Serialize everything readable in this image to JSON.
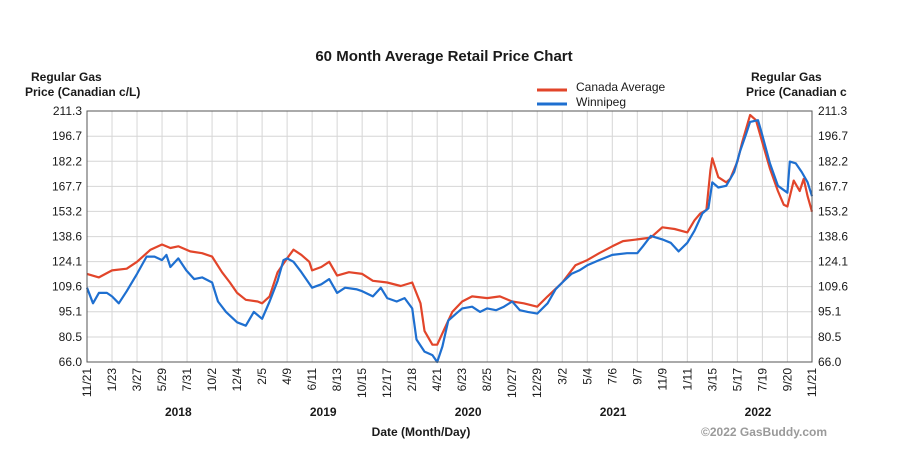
{
  "chart_data": {
    "type": "line",
    "title": "60 Month Average Retail Price Chart",
    "ylabel_left": [
      "Regular Gas",
      "Price (Canadian c/L)"
    ],
    "ylabel_right": [
      "Regular Gas",
      "Price (Canadian c"
    ],
    "xlabel": "Date (Month/Day)",
    "credit": "©2022 GasBuddy.com",
    "ylim": [
      66.0,
      211.3
    ],
    "yticks": [
      "211.3",
      "196.7",
      "182.2",
      "167.7",
      "153.2",
      "138.6",
      "124.1",
      "109.6",
      "95.1",
      "80.5",
      "66.0"
    ],
    "xlim": [
      0,
      1826
    ],
    "xticks": [
      {
        "label": "11/21",
        "x": 0
      },
      {
        "label": "1/23",
        "x": 63
      },
      {
        "label": "3/27",
        "x": 126
      },
      {
        "label": "5/29",
        "x": 189
      },
      {
        "label": "7/31",
        "x": 252
      },
      {
        "label": "10/2",
        "x": 315
      },
      {
        "label": "12/4",
        "x": 378
      },
      {
        "label": "2/5",
        "x": 441
      },
      {
        "label": "4/9",
        "x": 504
      },
      {
        "label": "6/11",
        "x": 567
      },
      {
        "label": "8/13",
        "x": 630
      },
      {
        "label": "10/15",
        "x": 693
      },
      {
        "label": "12/17",
        "x": 756
      },
      {
        "label": "2/18",
        "x": 819
      },
      {
        "label": "4/21",
        "x": 882
      },
      {
        "label": "6/23",
        "x": 945
      },
      {
        "label": "8/25",
        "x": 1008
      },
      {
        "label": "10/27",
        "x": 1071
      },
      {
        "label": "12/29",
        "x": 1134
      },
      {
        "label": "3/2",
        "x": 1197
      },
      {
        "label": "5/4",
        "x": 1260
      },
      {
        "label": "7/6",
        "x": 1323
      },
      {
        "label": "9/7",
        "x": 1386
      },
      {
        "label": "11/9",
        "x": 1449
      },
      {
        "label": "1/11",
        "x": 1512
      },
      {
        "label": "3/15",
        "x": 1575
      },
      {
        "label": "5/17",
        "x": 1638
      },
      {
        "label": "7/19",
        "x": 1701
      },
      {
        "label": "9/20",
        "x": 1764
      },
      {
        "label": "11/21",
        "x": 1826
      }
    ],
    "years": [
      {
        "label": "2018",
        "x": 230
      },
      {
        "label": "2019",
        "x": 595
      },
      {
        "label": "2020",
        "x": 960
      },
      {
        "label": "2021",
        "x": 1325
      },
      {
        "label": "2022",
        "x": 1690
      }
    ],
    "grid": true,
    "legend_position": "top-right",
    "series": [
      {
        "name": "Canada Average",
        "color": "#e2452a",
        "points": [
          [
            0,
            117
          ],
          [
            30,
            115
          ],
          [
            63,
            119
          ],
          [
            100,
            120
          ],
          [
            126,
            124
          ],
          [
            160,
            131
          ],
          [
            189,
            134
          ],
          [
            210,
            132
          ],
          [
            230,
            133
          ],
          [
            260,
            130
          ],
          [
            290,
            129
          ],
          [
            315,
            127
          ],
          [
            340,
            118
          ],
          [
            360,
            112
          ],
          [
            378,
            106
          ],
          [
            400,
            102
          ],
          [
            430,
            101
          ],
          [
            441,
            100
          ],
          [
            460,
            104
          ],
          [
            480,
            118
          ],
          [
            504,
            126
          ],
          [
            520,
            131
          ],
          [
            540,
            128
          ],
          [
            560,
            124
          ],
          [
            567,
            119
          ],
          [
            590,
            121
          ],
          [
            610,
            124
          ],
          [
            630,
            116
          ],
          [
            660,
            118
          ],
          [
            693,
            117
          ],
          [
            720,
            113
          ],
          [
            756,
            112
          ],
          [
            790,
            110
          ],
          [
            819,
            112
          ],
          [
            840,
            100
          ],
          [
            850,
            84
          ],
          [
            870,
            76
          ],
          [
            882,
            76
          ],
          [
            900,
            85
          ],
          [
            920,
            95
          ],
          [
            945,
            101
          ],
          [
            970,
            104
          ],
          [
            1008,
            103
          ],
          [
            1040,
            104
          ],
          [
            1071,
            101
          ],
          [
            1100,
            100
          ],
          [
            1134,
            98
          ],
          [
            1160,
            104
          ],
          [
            1197,
            112
          ],
          [
            1230,
            122
          ],
          [
            1260,
            125
          ],
          [
            1290,
            129
          ],
          [
            1323,
            133
          ],
          [
            1350,
            136
          ],
          [
            1386,
            137
          ],
          [
            1420,
            138
          ],
          [
            1449,
            144
          ],
          [
            1480,
            143
          ],
          [
            1512,
            141
          ],
          [
            1530,
            148
          ],
          [
            1545,
            152
          ],
          [
            1560,
            154
          ],
          [
            1570,
            177
          ],
          [
            1575,
            184
          ],
          [
            1590,
            173
          ],
          [
            1610,
            170
          ],
          [
            1620,
            172
          ],
          [
            1638,
            182
          ],
          [
            1650,
            193
          ],
          [
            1660,
            201
          ],
          [
            1670,
            209
          ],
          [
            1685,
            206
          ],
          [
            1701,
            193
          ],
          [
            1720,
            178
          ],
          [
            1740,
            165
          ],
          [
            1755,
            157
          ],
          [
            1764,
            156
          ],
          [
            1780,
            171
          ],
          [
            1795,
            165
          ],
          [
            1805,
            172
          ],
          [
            1815,
            162
          ],
          [
            1826,
            153
          ]
        ]
      },
      {
        "name": "Winnipeg",
        "color": "#1e6fd0",
        "points": [
          [
            0,
            109
          ],
          [
            15,
            100
          ],
          [
            30,
            106
          ],
          [
            50,
            106
          ],
          [
            63,
            104
          ],
          [
            80,
            100
          ],
          [
            100,
            107
          ],
          [
            126,
            117
          ],
          [
            150,
            127
          ],
          [
            170,
            127
          ],
          [
            189,
            125
          ],
          [
            200,
            128
          ],
          [
            210,
            121
          ],
          [
            230,
            126
          ],
          [
            250,
            119
          ],
          [
            270,
            114
          ],
          [
            290,
            115
          ],
          [
            315,
            112
          ],
          [
            330,
            101
          ],
          [
            350,
            95
          ],
          [
            378,
            89
          ],
          [
            400,
            87
          ],
          [
            420,
            95
          ],
          [
            441,
            91
          ],
          [
            460,
            101
          ],
          [
            480,
            113
          ],
          [
            495,
            125
          ],
          [
            504,
            126
          ],
          [
            520,
            124
          ],
          [
            540,
            118
          ],
          [
            567,
            109
          ],
          [
            590,
            111
          ],
          [
            610,
            114
          ],
          [
            630,
            106
          ],
          [
            650,
            109
          ],
          [
            680,
            108
          ],
          [
            693,
            107
          ],
          [
            720,
            104
          ],
          [
            740,
            109
          ],
          [
            756,
            103
          ],
          [
            780,
            101
          ],
          [
            800,
            103
          ],
          [
            819,
            97
          ],
          [
            830,
            79
          ],
          [
            850,
            72
          ],
          [
            870,
            70
          ],
          [
            882,
            66
          ],
          [
            895,
            75
          ],
          [
            910,
            90
          ],
          [
            930,
            94
          ],
          [
            945,
            97
          ],
          [
            970,
            98
          ],
          [
            990,
            95
          ],
          [
            1008,
            97
          ],
          [
            1030,
            96
          ],
          [
            1050,
            98
          ],
          [
            1071,
            101
          ],
          [
            1090,
            96
          ],
          [
            1110,
            95
          ],
          [
            1134,
            94
          ],
          [
            1160,
            100
          ],
          [
            1180,
            108
          ],
          [
            1197,
            112
          ],
          [
            1220,
            117
          ],
          [
            1240,
            119
          ],
          [
            1260,
            122
          ],
          [
            1290,
            125
          ],
          [
            1323,
            128
          ],
          [
            1360,
            129
          ],
          [
            1386,
            129
          ],
          [
            1400,
            133
          ],
          [
            1420,
            139
          ],
          [
            1449,
            137
          ],
          [
            1470,
            135
          ],
          [
            1490,
            130
          ],
          [
            1512,
            135
          ],
          [
            1530,
            142
          ],
          [
            1550,
            152
          ],
          [
            1565,
            155
          ],
          [
            1575,
            170
          ],
          [
            1590,
            167
          ],
          [
            1610,
            168
          ],
          [
            1630,
            176
          ],
          [
            1645,
            188
          ],
          [
            1660,
            198
          ],
          [
            1670,
            205
          ],
          [
            1690,
            206
          ],
          [
            1700,
            198
          ],
          [
            1720,
            181
          ],
          [
            1740,
            168
          ],
          [
            1764,
            164
          ],
          [
            1770,
            182
          ],
          [
            1785,
            181
          ],
          [
            1800,
            176
          ],
          [
            1815,
            170
          ],
          [
            1826,
            162
          ]
        ]
      }
    ]
  }
}
